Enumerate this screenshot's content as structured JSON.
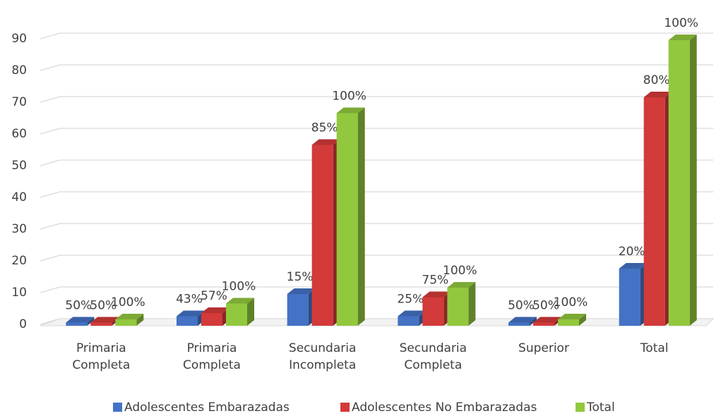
{
  "chart_data": {
    "type": "bar3d",
    "categories": [
      "Primaria Completa",
      "Primaria Completa",
      "Secundaria Incompleta",
      "Secundaria Completa",
      "Superior",
      "Total"
    ],
    "series": [
      {
        "name": "Adolescentes Embarazadas",
        "color": "#4472c4",
        "values": [
          1,
          3,
          10,
          3,
          1,
          18
        ],
        "value_labels": [
          "50%",
          "43%",
          "15%",
          "25%",
          "50%",
          "20%"
        ]
      },
      {
        "name": "Adolescentes No Embarazadas",
        "color": "#d33a3a",
        "values": [
          1,
          4,
          57,
          9,
          1,
          72
        ],
        "value_labels": [
          "50%",
          "57%",
          "85%",
          "75%",
          "50%",
          "80%"
        ]
      },
      {
        "name": "Total",
        "color": "#92c83e",
        "values": [
          2,
          7,
          67,
          12,
          2,
          90
        ],
        "value_labels": [
          "100%",
          "100%",
          "100%",
          "100%",
          "100%",
          "100%"
        ]
      }
    ],
    "ylim": [
      0,
      90
    ],
    "yticks": [
      0,
      10,
      20,
      30,
      40,
      50,
      60,
      70,
      80,
      90
    ],
    "grid": true,
    "legend": "bottom"
  }
}
